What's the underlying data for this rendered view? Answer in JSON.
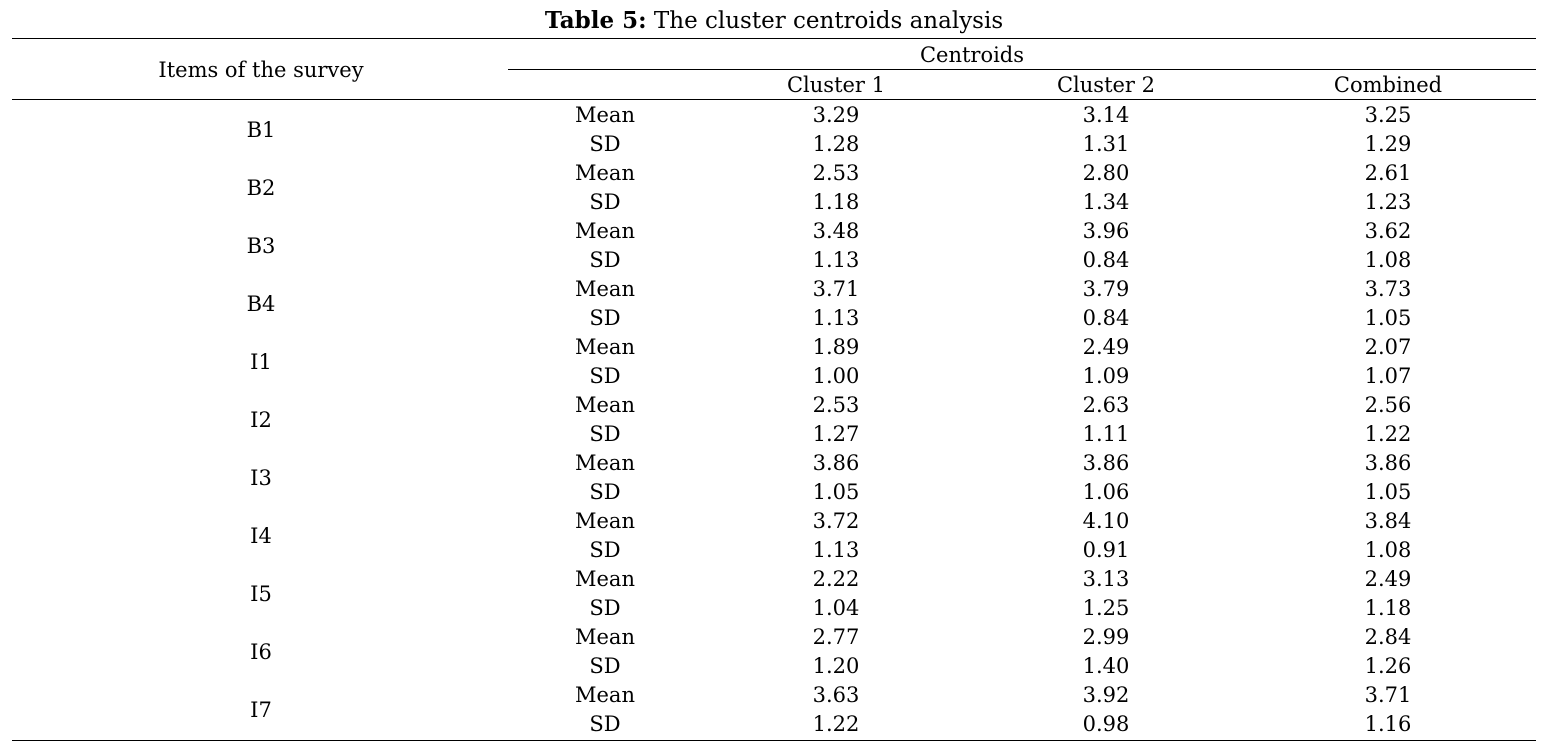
{
  "caption": {
    "label": "Table 5:",
    "text": "The cluster centroids analysis"
  },
  "header": {
    "items_col": "Items of the survey",
    "group": "Centroids",
    "columns": [
      "Cluster 1",
      "Cluster 2",
      "Combined"
    ]
  },
  "rows": [
    {
      "item": "B1",
      "mean": [
        "3.29",
        "3.14",
        "3.25"
      ],
      "sd": [
        "1.28",
        "1.31",
        "1.29"
      ]
    },
    {
      "item": "B2",
      "mean": [
        "2.53",
        "2.80",
        "2.61"
      ],
      "sd": [
        "1.18",
        "1.34",
        "1.23"
      ]
    },
    {
      "item": "B3",
      "mean": [
        "3.48",
        "3.96",
        "3.62"
      ],
      "sd": [
        "1.13",
        "0.84",
        "1.08"
      ]
    },
    {
      "item": "B4",
      "mean": [
        "3.71",
        "3.79",
        "3.73"
      ],
      "sd": [
        "1.13",
        "0.84",
        "1.05"
      ]
    },
    {
      "item": "I1",
      "mean": [
        "1.89",
        "2.49",
        "2.07"
      ],
      "sd": [
        "1.00",
        "1.09",
        "1.07"
      ]
    },
    {
      "item": "I2",
      "mean": [
        "2.53",
        "2.63",
        "2.56"
      ],
      "sd": [
        "1.27",
        "1.11",
        "1.22"
      ]
    },
    {
      "item": "I3",
      "mean": [
        "3.86",
        "3.86",
        "3.86"
      ],
      "sd": [
        "1.05",
        "1.06",
        "1.05"
      ]
    },
    {
      "item": "I4",
      "mean": [
        "3.72",
        "4.10",
        "3.84"
      ],
      "sd": [
        "1.13",
        "0.91",
        "1.08"
      ]
    },
    {
      "item": "I5",
      "mean": [
        "2.22",
        "3.13",
        "2.49"
      ],
      "sd": [
        "1.04",
        "1.25",
        "1.18"
      ]
    },
    {
      "item": "I6",
      "mean": [
        "2.77",
        "2.99",
        "2.84"
      ],
      "sd": [
        "1.20",
        "1.40",
        "1.26"
      ]
    },
    {
      "item": "I7",
      "mean": [
        "3.63",
        "3.92",
        "3.71"
      ],
      "sd": [
        "1.22",
        "0.98",
        "1.16"
      ]
    }
  ],
  "stat_labels": {
    "mean": "Mean",
    "sd": "SD"
  }
}
